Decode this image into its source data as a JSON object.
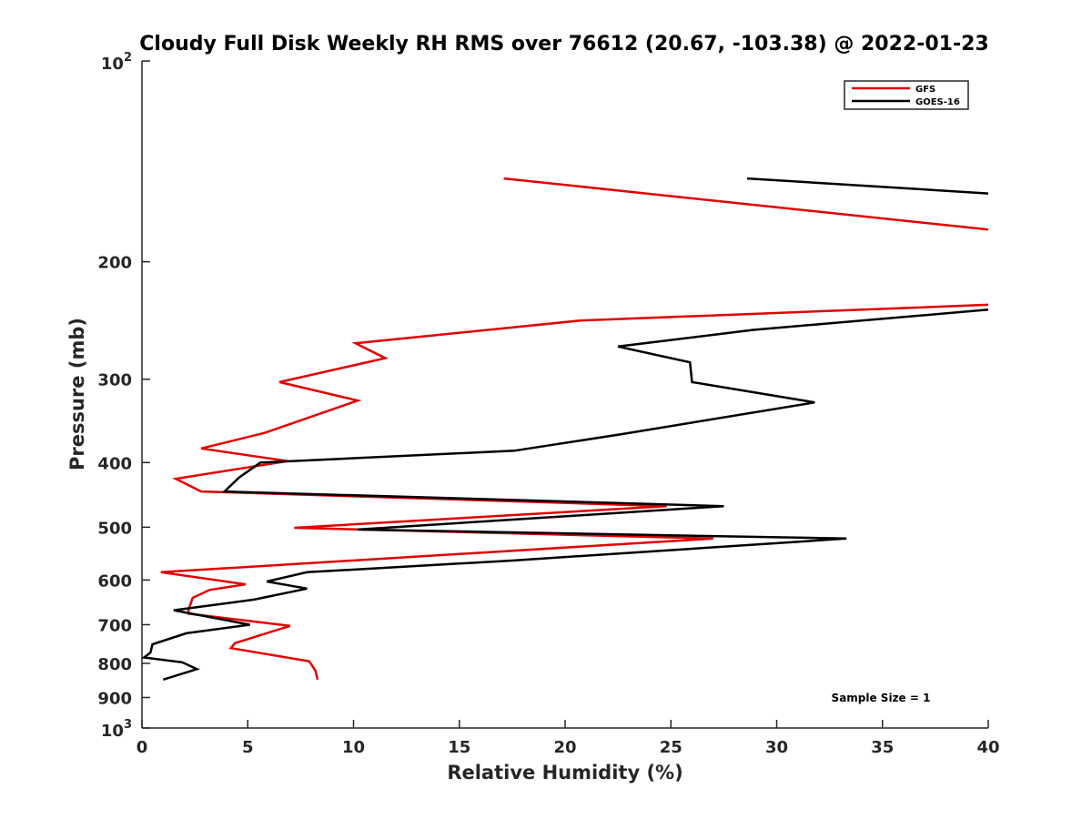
{
  "chart_data": {
    "type": "line",
    "title": "Cloudy Full Disk Weekly RH RMS over 76612 (20.67, -103.38) @ 2022-01-23",
    "xlabel": "Relative Humidity (%)",
    "ylabel": "Pressure (mb)",
    "xlim": [
      0,
      40
    ],
    "ylim": [
      100,
      1000
    ],
    "yscale": "log",
    "y_reversed": true,
    "grid": false,
    "legend_position": "top-right",
    "x_ticks": [
      0,
      5,
      10,
      15,
      20,
      25,
      30,
      35,
      40
    ],
    "y_ticks": [
      {
        "value": 100,
        "base": "10",
        "exp": "2"
      },
      {
        "value": 200,
        "label": "200"
      },
      {
        "value": 300,
        "label": "300"
      },
      {
        "value": 400,
        "label": "400"
      },
      {
        "value": 500,
        "label": "500"
      },
      {
        "value": 600,
        "label": "600"
      },
      {
        "value": 700,
        "label": "700"
      },
      {
        "value": 800,
        "label": "800"
      },
      {
        "value": 900,
        "label": "900"
      },
      {
        "value": 1000,
        "base": "10",
        "exp": "3"
      }
    ],
    "annotation": "Sample Size = 1",
    "series": [
      {
        "name": "GFS",
        "color": "#e00000",
        "segments": [
          [
            [
              17.1,
              150
            ],
            [
              40,
              179
            ]
          ],
          [
            [
              40,
              232
            ],
            [
              20.7,
              245
            ],
            [
              10.1,
              265
            ],
            [
              11.5,
              279
            ],
            [
              6.5,
              303
            ],
            [
              10.2,
              323
            ],
            [
              5.8,
              361
            ],
            [
              2.8,
              381
            ],
            [
              6.9,
              398
            ],
            [
              1.6,
              423
            ],
            [
              2.8,
              442
            ],
            [
              24.8,
              465
            ],
            [
              7.2,
              501
            ],
            [
              27.0,
              520
            ],
            [
              0.9,
              584
            ],
            [
              4.9,
              609
            ],
            [
              3.2,
              621
            ],
            [
              2.4,
              638
            ],
            [
              2.2,
              665
            ],
            [
              2.2,
              674
            ],
            [
              7.0,
              703
            ],
            [
              4.4,
              746
            ],
            [
              4.2,
              759
            ],
            [
              7.9,
              794
            ],
            [
              8.2,
              820
            ],
            [
              8.3,
              846
            ]
          ]
        ]
      },
      {
        "name": "GOES-16",
        "color": "#000000",
        "segments": [
          [
            [
              28.6,
              150
            ],
            [
              40,
              158
            ]
          ],
          [
            [
              40,
              236
            ],
            [
              28.9,
              253
            ],
            [
              22.5,
              268
            ],
            [
              25.9,
              283
            ],
            [
              26.0,
              303
            ],
            [
              31.8,
              325
            ],
            [
              22.6,
              363
            ],
            [
              17.6,
              384
            ],
            [
              5.6,
              400
            ],
            [
              4.6,
              421
            ],
            [
              3.9,
              442
            ],
            [
              27.5,
              465
            ],
            [
              10.2,
              504
            ],
            [
              33.3,
              520
            ],
            [
              17.5,
              561
            ],
            [
              7.8,
              584
            ],
            [
              5.9,
              603
            ],
            [
              7.8,
              618
            ],
            [
              5.3,
              642
            ],
            [
              1.5,
              666
            ],
            [
              5.1,
              700
            ],
            [
              2.1,
              721
            ],
            [
              0.5,
              749
            ],
            [
              0.4,
              771
            ],
            [
              0.1,
              784
            ],
            [
              1.9,
              797
            ],
            [
              2.6,
              816
            ],
            [
              1.0,
              846
            ]
          ]
        ]
      }
    ]
  }
}
